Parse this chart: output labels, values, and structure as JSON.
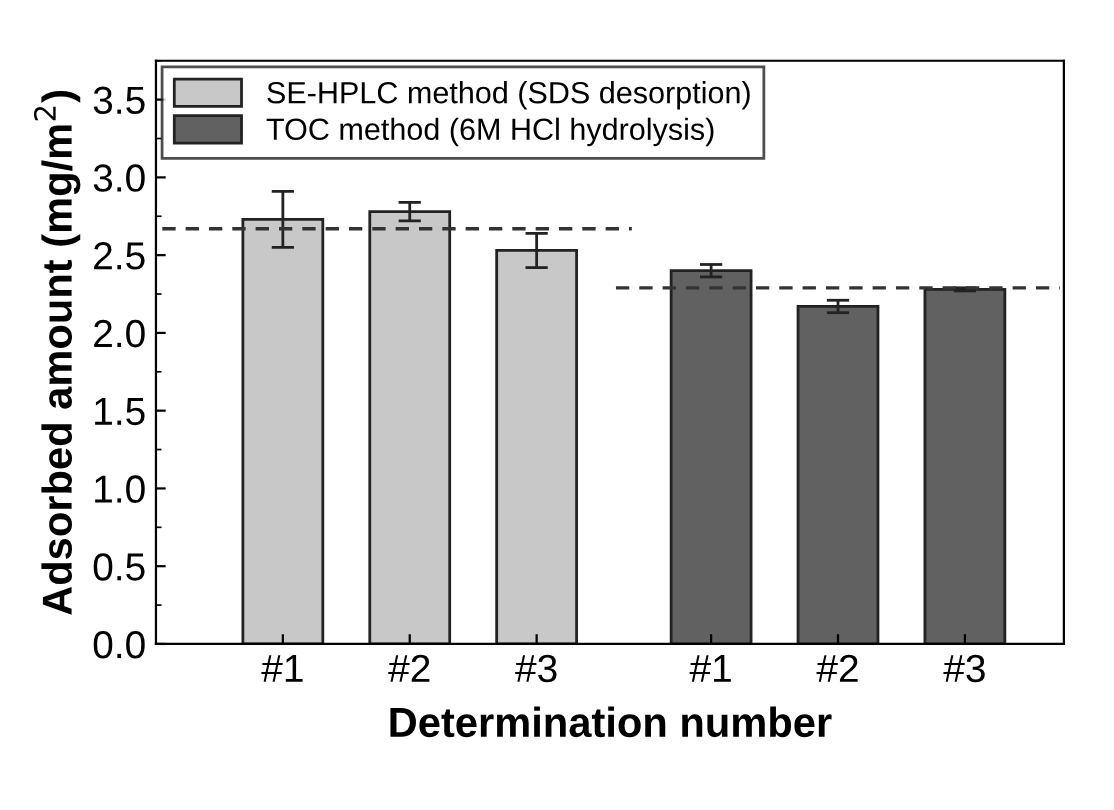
{
  "chart_data": {
    "type": "bar",
    "xlabel": "Determination number",
    "ylabel": "Adsorbed amount (mg/m$^{2}$)",
    "categories": [
      "#1",
      "#2",
      "#3",
      "#1",
      "#2",
      "#3"
    ],
    "series": [
      {
        "name": "SE-HPLC method (SDS desorption)",
        "color": "#c8c8c8",
        "values": [
          2.73,
          2.78,
          2.53,
          null,
          null,
          null
        ],
        "errors": [
          0.18,
          0.06,
          0.11,
          null,
          null,
          null
        ]
      },
      {
        "name": "TOC method (6M HCl hydrolysis)",
        "color": "#616161",
        "values": [
          null,
          null,
          null,
          2.4,
          2.17,
          2.28
        ],
        "errors": [
          null,
          null,
          null,
          0.04,
          0.04,
          0.01
        ]
      }
    ],
    "ref_lines": [
      {
        "axis": "y",
        "value": 2.67,
        "color": "#333333",
        "line_style": "dashed"
      },
      {
        "axis": "y",
        "value": 2.29,
        "color": "#333333",
        "line_style": "dashed"
      }
    ],
    "ylim": [
      0,
      3.75
    ],
    "yticks": [
      {
        "value": 0,
        "label": "0.0"
      },
      0.5,
      {
        "value": 1,
        "label": "1.0"
      },
      1.5,
      {
        "value": 2,
        "label": "2.0"
      },
      2.5,
      {
        "value": 3,
        "label": "3.0"
      },
      3.5
    ],
    "grid": false,
    "legend": "top left"
  }
}
